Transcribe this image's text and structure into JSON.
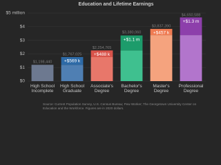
{
  "chart_data": {
    "type": "bar",
    "title": "Education and Lifetime Earnings",
    "categories": [
      "High School Incomplete",
      "High School Graduate",
      "Associate's Degree",
      "Bachelor's Degree",
      "Master's Degree",
      "Professional Degree"
    ],
    "series": [
      {
        "name": "Base",
        "colors": [
          "#6d7990",
          "#4f7fb3",
          "#e8776a",
          "#3fc08f",
          "#f5a37e",
          "#b275cc"
        ],
        "values": [
          1.19844,
          1.19844,
          1.767,
          2.255,
          3.38,
          3.38
        ]
      },
      {
        "name": "Increase",
        "colors": [
          "#6d7990",
          "#2d6aa7",
          "#d9534a",
          "#1d9c6b",
          "#ef7b52",
          "#8d3fab"
        ],
        "values": [
          null,
          0.569,
          0.488,
          1.1,
          0.457,
          1.3
        ],
        "value_labels": [
          null,
          "+$569 k",
          "+$488 k",
          "+$1.1 m",
          "+$457 k",
          "+$1.3 m"
        ]
      }
    ],
    "totals": {
      "values": [
        1.19844,
        1.767025,
        2.254765,
        3.38006,
        3.83739,
        4.650588
      ],
      "value_labels": [
        "$1,198,440",
        "$1,767,025",
        "$2,254,765",
        "$3,380,060",
        "$3,837,390",
        "$4,650,588"
      ]
    },
    "ylim": [
      0,
      5
    ],
    "yticks": [
      {
        "value": 0,
        "label": "$0"
      },
      {
        "value": 1,
        "label": "$1"
      },
      {
        "value": 2,
        "label": "$2"
      },
      {
        "value": 3,
        "label": "$3"
      },
      {
        "value": 4,
        "label": "$4"
      },
      {
        "value": 5,
        "label": "$5 million"
      }
    ],
    "grid": true,
    "source": "Source: Current Population Survey, U.S. Census Bureau; Pew Worker; The Georgetown University Center on Education and the Workforce. Figures are in 2020 dollars."
  }
}
